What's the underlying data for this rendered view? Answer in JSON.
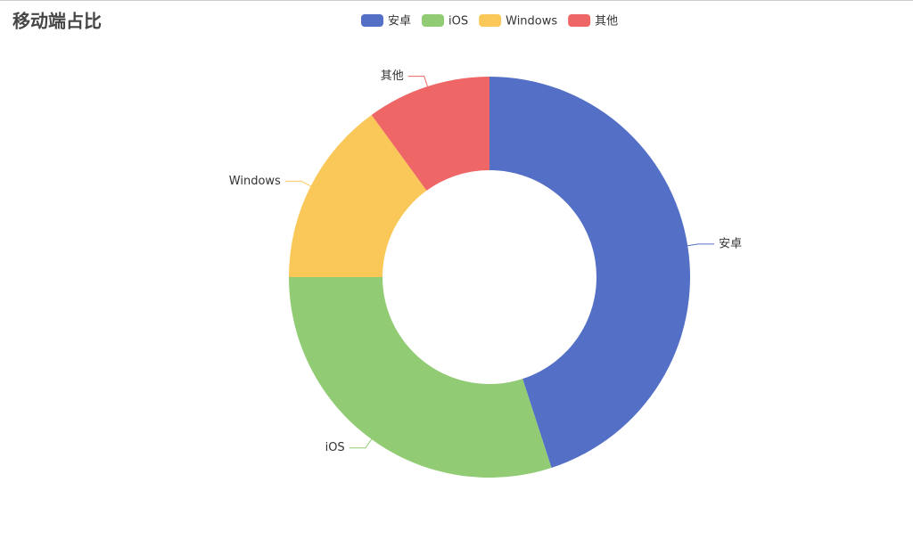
{
  "chart_data": {
    "type": "pie",
    "title": "移动端占比",
    "categories": [
      "安卓",
      "iOS",
      "Windows",
      "其他"
    ],
    "values": [
      45,
      30,
      15,
      10
    ],
    "colors": [
      "#5470c6",
      "#91cc75",
      "#fac858",
      "#ee6666"
    ]
  }
}
